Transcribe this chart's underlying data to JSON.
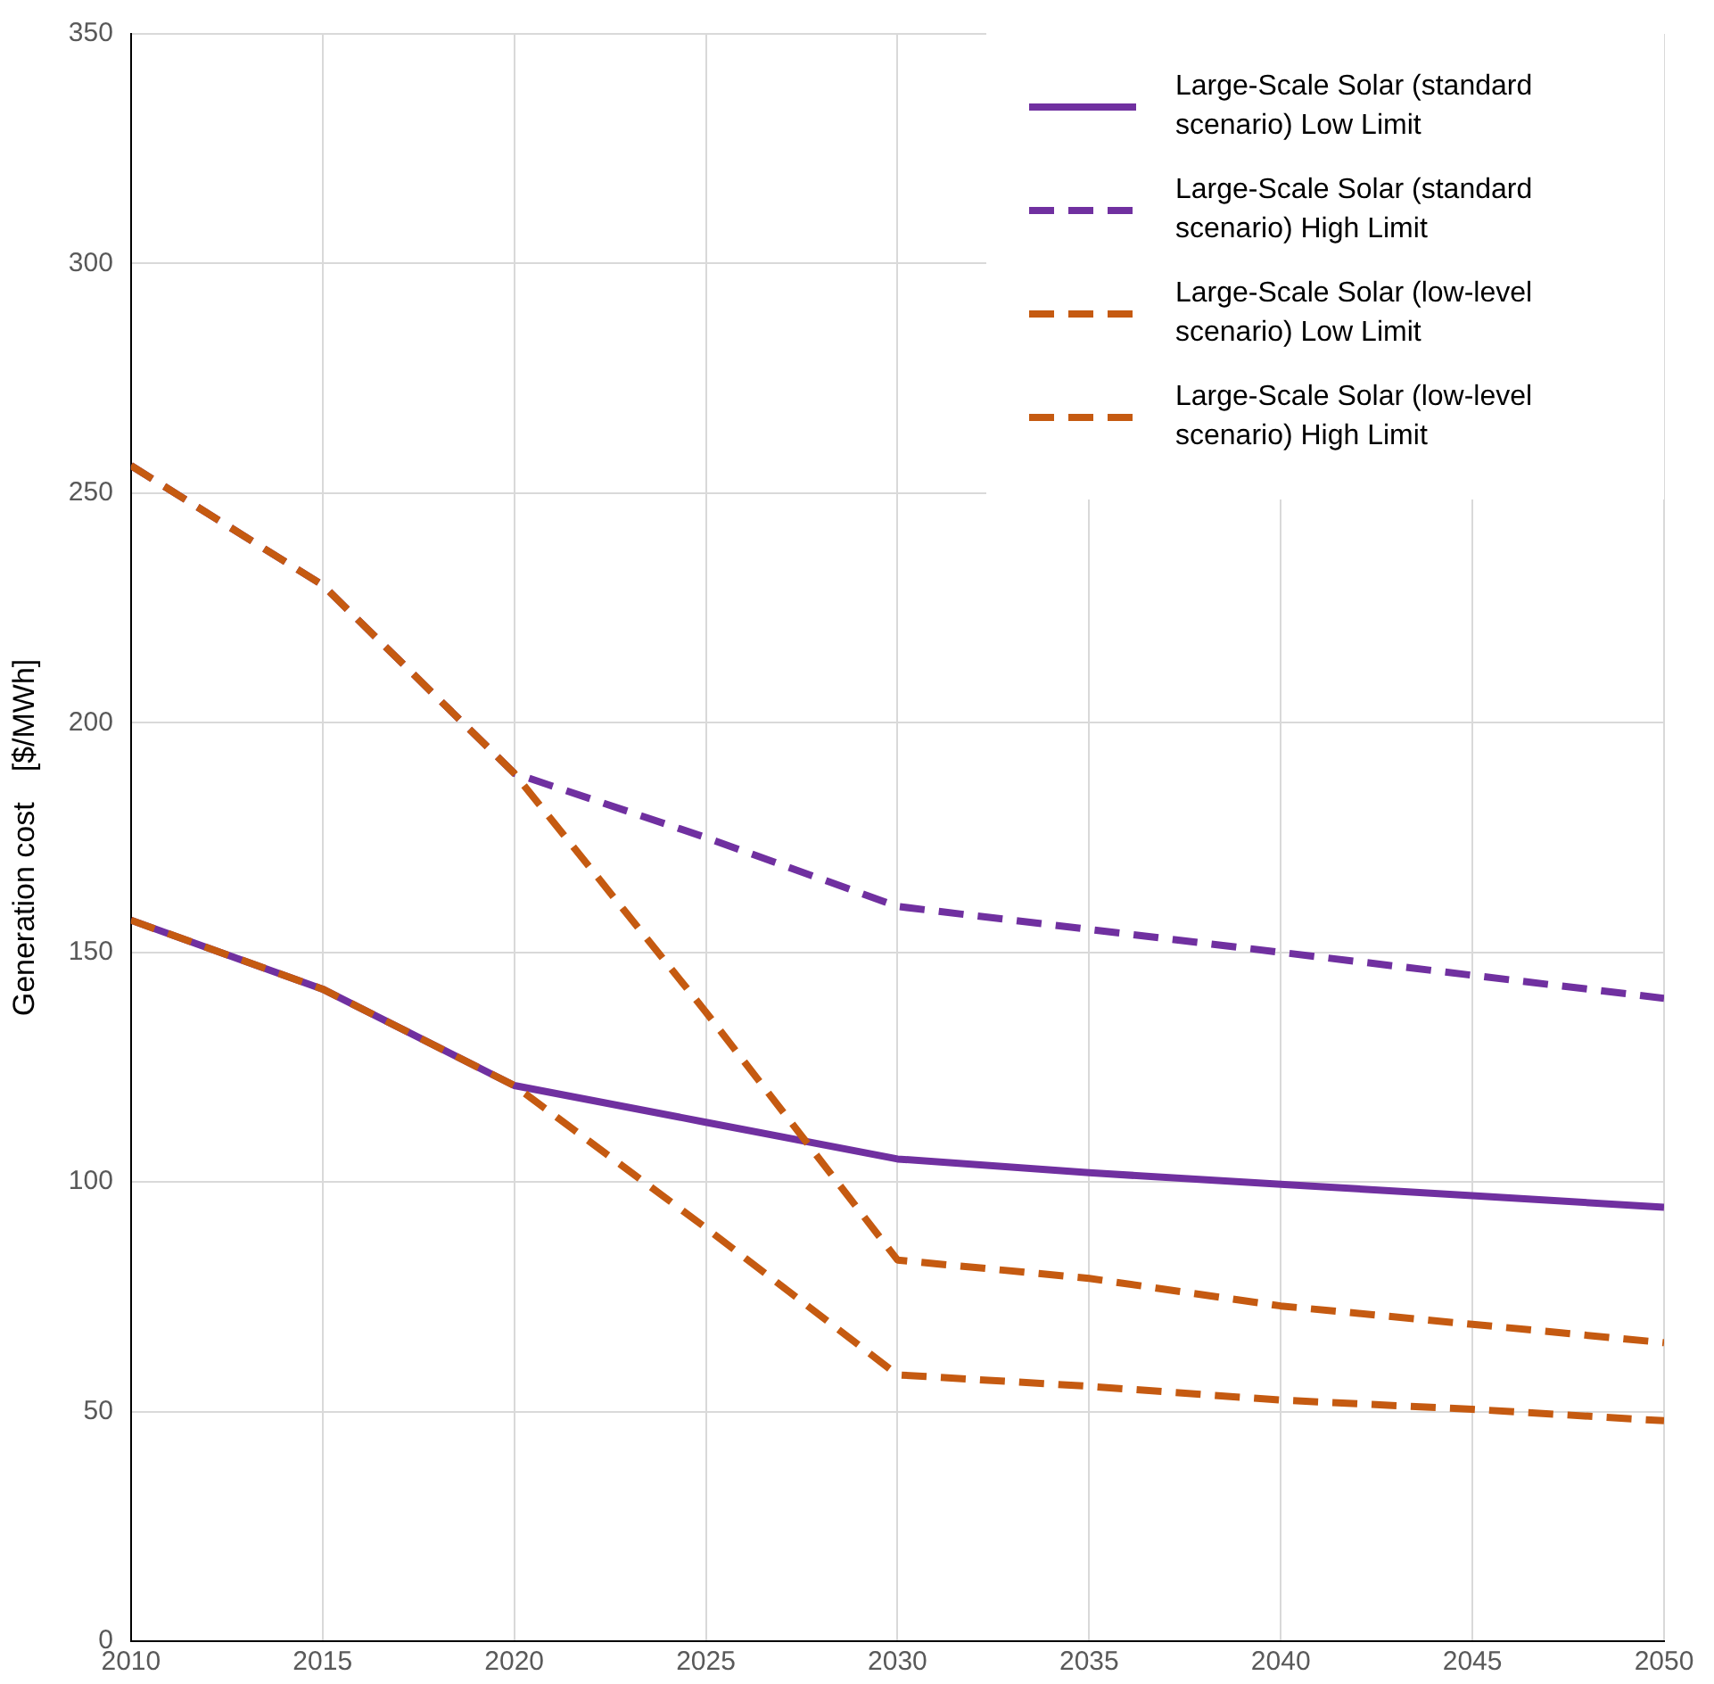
{
  "chart_data": {
    "type": "line",
    "ylabel": "Generation cost　[$/MWh]",
    "x": [
      2010,
      2015,
      2020,
      2025,
      2030,
      2035,
      2040,
      2045,
      2050
    ],
    "xlim": [
      2010,
      2050
    ],
    "xticks": [
      2010,
      2015,
      2020,
      2025,
      2030,
      2035,
      2040,
      2045,
      2050
    ],
    "ylim": [
      0,
      350
    ],
    "yticks": [
      0,
      50,
      100,
      150,
      200,
      250,
      300,
      350
    ],
    "grid": true,
    "legend": "top right",
    "marker": "none",
    "series": [
      {
        "name": "Large-Scale Solar (standard scenario) Low Limit",
        "color": "#7030a0",
        "line_style": "solid",
        "values": [
          157,
          142,
          121,
          113,
          105,
          102,
          99.5,
          97,
          94.5
        ]
      },
      {
        "name": "Large-Scale Solar (standard scenario) High Limit",
        "color": "#7030a0",
        "line_style": "dashed",
        "values": [
          256,
          230,
          189,
          175,
          160,
          155,
          150,
          145,
          140
        ]
      },
      {
        "name": "Large-Scale Solar (low-level scenario) Low Limit",
        "color": "#c55a11",
        "line_style": "dashed",
        "values": [
          157,
          142,
          121,
          90,
          58,
          55.5,
          52.5,
          50.5,
          48
        ]
      },
      {
        "name": "Large-Scale Solar (low-level scenario) High Limit",
        "color": "#c55a11",
        "line_style": "dashed",
        "values": [
          256,
          230,
          189,
          137,
          83,
          79,
          73,
          69,
          65
        ]
      }
    ]
  }
}
